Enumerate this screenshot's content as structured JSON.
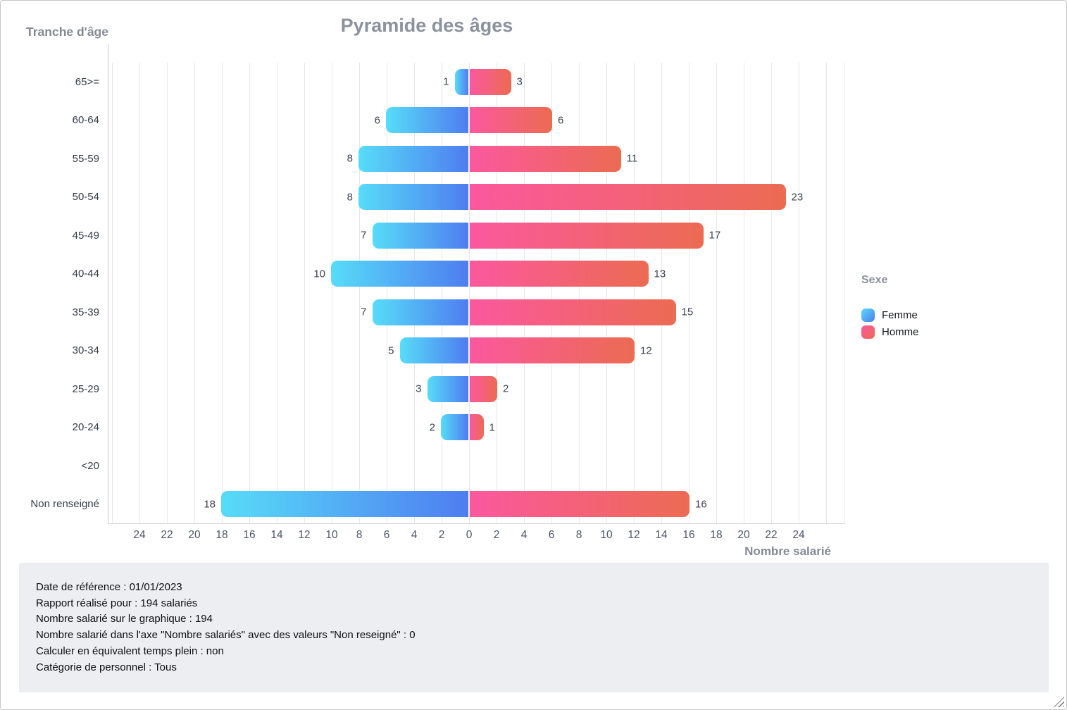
{
  "chart_data": {
    "type": "bar",
    "variant": "population-pyramid",
    "title": "Pyramide des âges",
    "ylabel": "Tranche d'âge",
    "xlabel": "Nombre salarié",
    "categories": [
      "65>=",
      "60-64",
      "55-59",
      "50-54",
      "45-49",
      "40-44",
      "35-39",
      "30-34",
      "25-29",
      "20-24",
      "<20",
      "Non renseigné"
    ],
    "series": [
      {
        "name": "Femme",
        "side": "left",
        "color_start": "#57dcf8",
        "color_end": "#4e7df0",
        "values": [
          1,
          6,
          8,
          8,
          7,
          10,
          7,
          5,
          3,
          2,
          0,
          18
        ]
      },
      {
        "name": "Homme",
        "side": "right",
        "color_start": "#fb589e",
        "color_end": "#ec6b52",
        "values": [
          3,
          6,
          11,
          23,
          17,
          13,
          15,
          12,
          2,
          1,
          0,
          16
        ]
      }
    ],
    "axis": {
      "xlim": [
        -26,
        26
      ],
      "tick_step": 2,
      "tick_label_max": 24,
      "grid": true
    },
    "legend": {
      "title": "Sexe",
      "position": "right"
    }
  },
  "info_panel": {
    "lines": [
      "Date de référence : 01/01/2023",
      "Rapport réalisé pour : 194 salariés",
      "Nombre salarié sur le graphique : 194",
      "Nombre salarié dans l'axe \"Nombre salariés\" avec des valeurs \"Non reseigné\" : 0",
      "Calculer en équivalent temps plein : non",
      "Catégorie de personnel : Tous"
    ]
  },
  "ui_colors": {
    "heading_gray": "#8b919e",
    "info_panel_bg": "#eceef2",
    "gridline": "#e7e7e9"
  }
}
